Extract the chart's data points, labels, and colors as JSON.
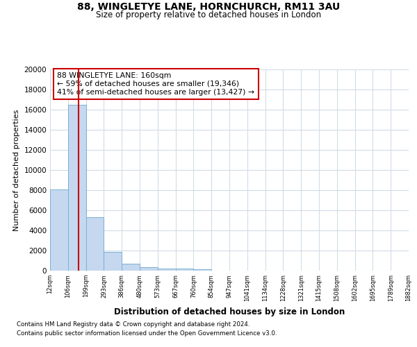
{
  "title_line1": "88, WINGLETYE LANE, HORNCHURCH, RM11 3AU",
  "title_line2": "Size of property relative to detached houses in London",
  "xlabel": "Distribution of detached houses by size in London",
  "ylabel": "Number of detached properties",
  "annotation_title": "88 WINGLETYE LANE: 160sqm",
  "annotation_line2": "← 59% of detached houses are smaller (19,346)",
  "annotation_line3": "41% of semi-detached houses are larger (13,427) →",
  "footnote1": "Contains HM Land Registry data © Crown copyright and database right 2024.",
  "footnote2": "Contains public sector information licensed under the Open Government Licence v3.0.",
  "bar_values": [
    8050,
    16500,
    5300,
    1850,
    700,
    320,
    220,
    190,
    150,
    0,
    0,
    0,
    0,
    0,
    0,
    0,
    0,
    0,
    0,
    0
  ],
  "bin_labels": [
    "12sqm",
    "106sqm",
    "199sqm",
    "293sqm",
    "386sqm",
    "480sqm",
    "573sqm",
    "667sqm",
    "760sqm",
    "854sqm",
    "947sqm",
    "1041sqm",
    "1134sqm",
    "1228sqm",
    "1321sqm",
    "1415sqm",
    "1508sqm",
    "1602sqm",
    "1695sqm",
    "1789sqm",
    "1882sqm"
  ],
  "bar_color": "#c5d8ef",
  "bar_edge_color": "#7aafd4",
  "vline_color": "#cc0000",
  "annotation_box_edge_color": "#cc0000",
  "background_color": "#ffffff",
  "grid_color": "#d0dce8",
  "ylim": [
    0,
    20000
  ],
  "yticks": [
    0,
    2000,
    4000,
    6000,
    8000,
    10000,
    12000,
    14000,
    16000,
    18000,
    20000
  ]
}
